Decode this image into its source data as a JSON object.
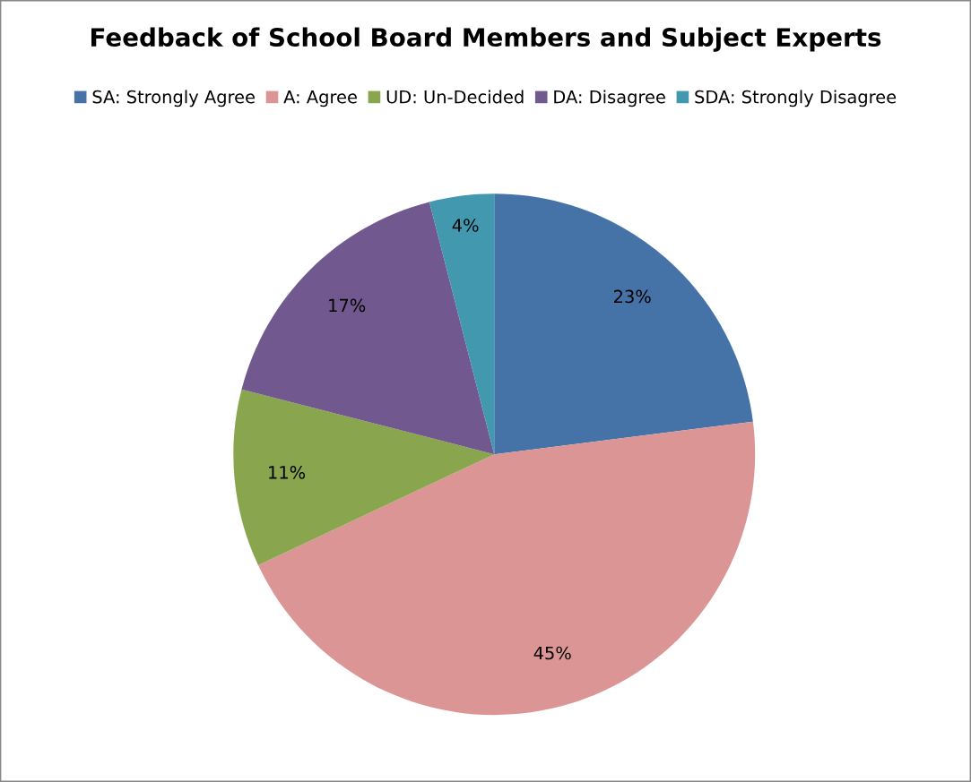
{
  "chart_data": {
    "type": "pie",
    "title": "Feedback of School Board Members and Subject Experts",
    "categories": [
      "SA: Strongly Agree",
      "A: Agree",
      "UD: Un-Decided",
      "DA: Disagree",
      "SDA: Strongly Disagree"
    ],
    "values": [
      23,
      45,
      11,
      17,
      4
    ],
    "colors": [
      "#4572a7",
      "#db9594",
      "#89a54e",
      "#71588f",
      "#4198af"
    ],
    "value_labels": [
      "23%",
      "45%",
      "11%",
      "17%",
      "4%"
    ],
    "legend": "top"
  }
}
